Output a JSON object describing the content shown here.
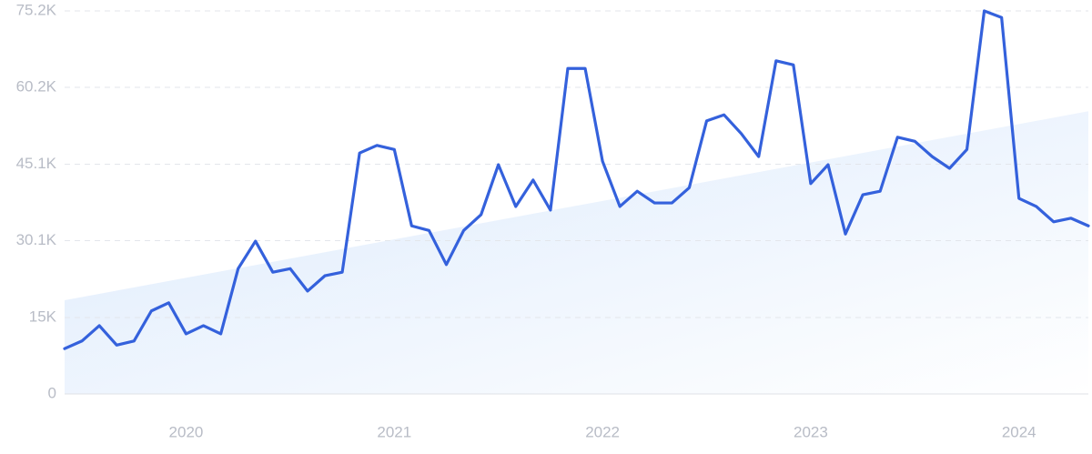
{
  "chart_data": {
    "type": "line",
    "categories": [
      null,
      null,
      null,
      null,
      null,
      null,
      null,
      "2020",
      null,
      null,
      null,
      null,
      null,
      null,
      null,
      null,
      null,
      null,
      null,
      "2021",
      null,
      null,
      null,
      null,
      null,
      null,
      null,
      null,
      null,
      null,
      null,
      "2022",
      null,
      null,
      null,
      null,
      null,
      null,
      null,
      null,
      null,
      null,
      null,
      "2023",
      null,
      null,
      null,
      null,
      null,
      null,
      null,
      null,
      null,
      null,
      null,
      "2024",
      null,
      null,
      null,
      null
    ],
    "series": [
      {
        "color": "#3461dc",
        "values": [
          8900,
          10400,
          13400,
          9600,
          10400,
          16300,
          17900,
          11800,
          13400,
          11800,
          24600,
          30000,
          23900,
          24600,
          20200,
          23200,
          23900,
          47300,
          48800,
          48000,
          33000,
          32100,
          25400,
          32100,
          35200,
          45000,
          36800,
          42000,
          36100,
          63900,
          63900,
          45700,
          36800,
          39800,
          37500,
          37500,
          40500,
          53600,
          54800,
          51100,
          46600,
          65400,
          64600,
          41300,
          45000,
          31400,
          39100,
          39800,
          50400,
          49600,
          46600,
          44300,
          48000,
          75200,
          73900,
          38400,
          36800,
          33800,
          34500,
          33000
        ]
      }
    ],
    "trend": {
      "color": "#dceafc",
      "values": [
        18400,
        55500
      ]
    },
    "ylim": [
      0,
      75200
    ],
    "yticks": [
      0,
      {
        "value": 15000,
        "label": "15K"
      },
      {
        "value": 30100,
        "label": "30.1K"
      },
      {
        "value": 45100,
        "label": "45.1K"
      },
      {
        "value": 60200,
        "label": "60.2K"
      },
      {
        "value": 75200,
        "label": "75.2K"
      }
    ],
    "grid": true
  }
}
